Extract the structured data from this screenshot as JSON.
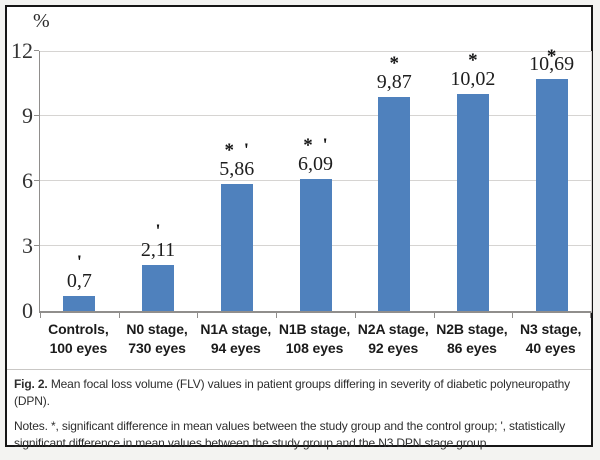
{
  "figure": {
    "unit_label": "%",
    "caption": {
      "fig_label": "Fig. 2.",
      "fig_text": "Mean focal loss volume (FLV) values in patient groups differing in severity of diabetic polyneuropathy (DPN).",
      "notes": "Notes. *, significant difference in mean values between the study group and the control group; ', statistically significant difference in mean values between the study group and the N3 DPN stage group"
    }
  },
  "chart_data": {
    "type": "bar",
    "title": "",
    "xlabel": "",
    "ylabel": "%",
    "ylim": [
      0,
      12
    ],
    "yticks": [
      0,
      3,
      6,
      9,
      12
    ],
    "grid": true,
    "legend": false,
    "bar_color": "#4f81bd",
    "categories": [
      "Controls, 100 eyes",
      "N0 stage, 730 eyes",
      "N1A stage, 94 eyes",
      "N1B stage, 108 eyes",
      "N2A stage, 92 eyes",
      "N2B stage, 86 eyes",
      "N3 stage, 40 eyes"
    ],
    "category_lines": [
      [
        "Controls,",
        "100 eyes"
      ],
      [
        "N0 stage,",
        "730 eyes"
      ],
      [
        "N1A stage,",
        "94 eyes"
      ],
      [
        "N1B stage,",
        "108 eyes"
      ],
      [
        "N2A stage,",
        "92 eyes"
      ],
      [
        "N2B stage,",
        "86 eyes"
      ],
      [
        "N3 stage,",
        "40 eyes"
      ]
    ],
    "values": [
      0.7,
      2.11,
      5.86,
      6.09,
      9.87,
      10.02,
      10.69
    ],
    "value_labels": [
      "0,7",
      "2,11",
      "5,86",
      "6,09",
      "9,87",
      "10,02",
      "10,69"
    ],
    "annotations": [
      "'",
      "'",
      "* '",
      "* '",
      "*",
      "*",
      "*"
    ]
  }
}
